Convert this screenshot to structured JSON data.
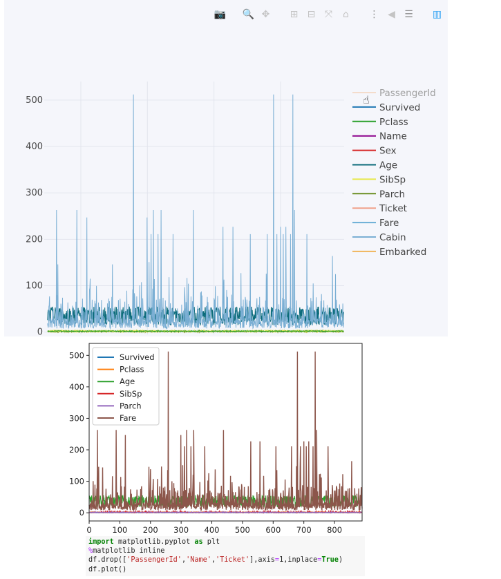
{
  "toolbar": {
    "buttons": [
      {
        "icon": "camera-icon",
        "glyph": "📷"
      },
      {
        "icon": "zoom-icon",
        "glyph": "🔍"
      },
      {
        "icon": "pan-icon",
        "glyph": "✥"
      },
      {
        "icon": "zoom-in-icon",
        "glyph": "⊞"
      },
      {
        "icon": "zoom-out-icon",
        "glyph": "⊟"
      },
      {
        "icon": "autoscale-icon",
        "glyph": "⤧"
      },
      {
        "icon": "reset-axes-icon",
        "glyph": "⌂"
      },
      {
        "icon": "spike-lines-icon",
        "glyph": "⋮"
      },
      {
        "icon": "hover-closest-icon",
        "glyph": "◀"
      },
      {
        "icon": "hover-compare-icon",
        "glyph": "☰"
      },
      {
        "icon": "plotly-logo-icon",
        "glyph": "▥"
      }
    ]
  },
  "cursor": {
    "icon": "hand-pointer-icon",
    "glyph": "☝"
  },
  "chart_data": [
    {
      "type": "line",
      "library": "plotly",
      "yticks": [
        0,
        100,
        200,
        300,
        400,
        500
      ],
      "ylim": [
        -5,
        540
      ],
      "xlim": [
        -10,
        891
      ],
      "grid": true,
      "legend_position": "right",
      "legend": [
        {
          "name": "PassengerId",
          "color": "#f4c7a5",
          "visible": false
        },
        {
          "name": "Survived",
          "color": "#1f77b4",
          "visible": true
        },
        {
          "name": "Pclass",
          "color": "#2ca02c",
          "visible": true
        },
        {
          "name": "Name",
          "color": "#8b008b",
          "visible": true
        },
        {
          "name": "Sex",
          "color": "#d62728",
          "visible": true
        },
        {
          "name": "Age",
          "color": "#0b6b7a",
          "visible": true
        },
        {
          "name": "SibSp",
          "color": "#e8e84a",
          "visible": true
        },
        {
          "name": "Parch",
          "color": "#6b8e23",
          "visible": true
        },
        {
          "name": "Ticket",
          "color": "#f0a08a",
          "visible": true
        },
        {
          "name": "Fare",
          "color": "#6aaed6",
          "visible": true
        },
        {
          "name": "Cabin",
          "color": "#7bafd4",
          "visible": true
        },
        {
          "name": "Embarked",
          "color": "#f0b55a",
          "visible": true
        }
      ],
      "fare_peaks": [
        [
          27,
          263
        ],
        [
          31,
          146
        ],
        [
          88,
          263
        ],
        [
          118,
          247
        ],
        [
          195,
          146
        ],
        [
          258,
          512
        ],
        [
          299,
          247
        ],
        [
          305,
          151
        ],
        [
          311,
          211
        ],
        [
          318,
          263
        ],
        [
          332,
          211
        ],
        [
          341,
          263
        ],
        [
          377,
          211
        ],
        [
          438,
          263
        ],
        [
          527,
          227
        ],
        [
          557,
          227
        ],
        [
          609,
          211
        ],
        [
          660,
          211
        ],
        [
          679,
          512
        ],
        [
          689,
          211
        ],
        [
          700,
          227
        ],
        [
          708,
          211
        ],
        [
          716,
          227
        ],
        [
          730,
          211
        ],
        [
          737,
          512
        ],
        [
          742,
          263
        ],
        [
          779,
          211
        ],
        [
          856,
          164
        ]
      ]
    },
    {
      "type": "line",
      "library": "matplotlib",
      "xticks": [
        0,
        100,
        200,
        300,
        400,
        500,
        600,
        700,
        800
      ],
      "yticks": [
        0,
        100,
        200,
        300,
        400,
        500
      ],
      "xlim": [
        0,
        890
      ],
      "ylim": [
        -26,
        538
      ],
      "legend_position": "top-left",
      "legend": [
        {
          "name": "Survived",
          "color": "#1f77b4"
        },
        {
          "name": "Pclass",
          "color": "#ff7f0e"
        },
        {
          "name": "Age",
          "color": "#2ca02c"
        },
        {
          "name": "SibSp",
          "color": "#d62728"
        },
        {
          "name": "Parch",
          "color": "#9467bd"
        },
        {
          "name": "Fare",
          "color": "#8c564b"
        }
      ]
    }
  ],
  "code": {
    "line1": {
      "kw": "import",
      "a": " matplotlib.pyplot ",
      "kw2": "as",
      "b": " plt"
    },
    "line2": {
      "mg": "%",
      "a": "matplotlib inline"
    },
    "line3": {
      "a": "df.drop([",
      "s1": "'PassengerId'",
      "c1": ",",
      "s2": "'Name'",
      "c2": ",",
      "s3": "'Ticket'",
      "b": "],axis",
      "op": "=",
      "c": "1,inplace",
      "op2": "=",
      "kw": "True",
      "d": ")"
    },
    "line4": {
      "a": "df.plot()"
    }
  }
}
